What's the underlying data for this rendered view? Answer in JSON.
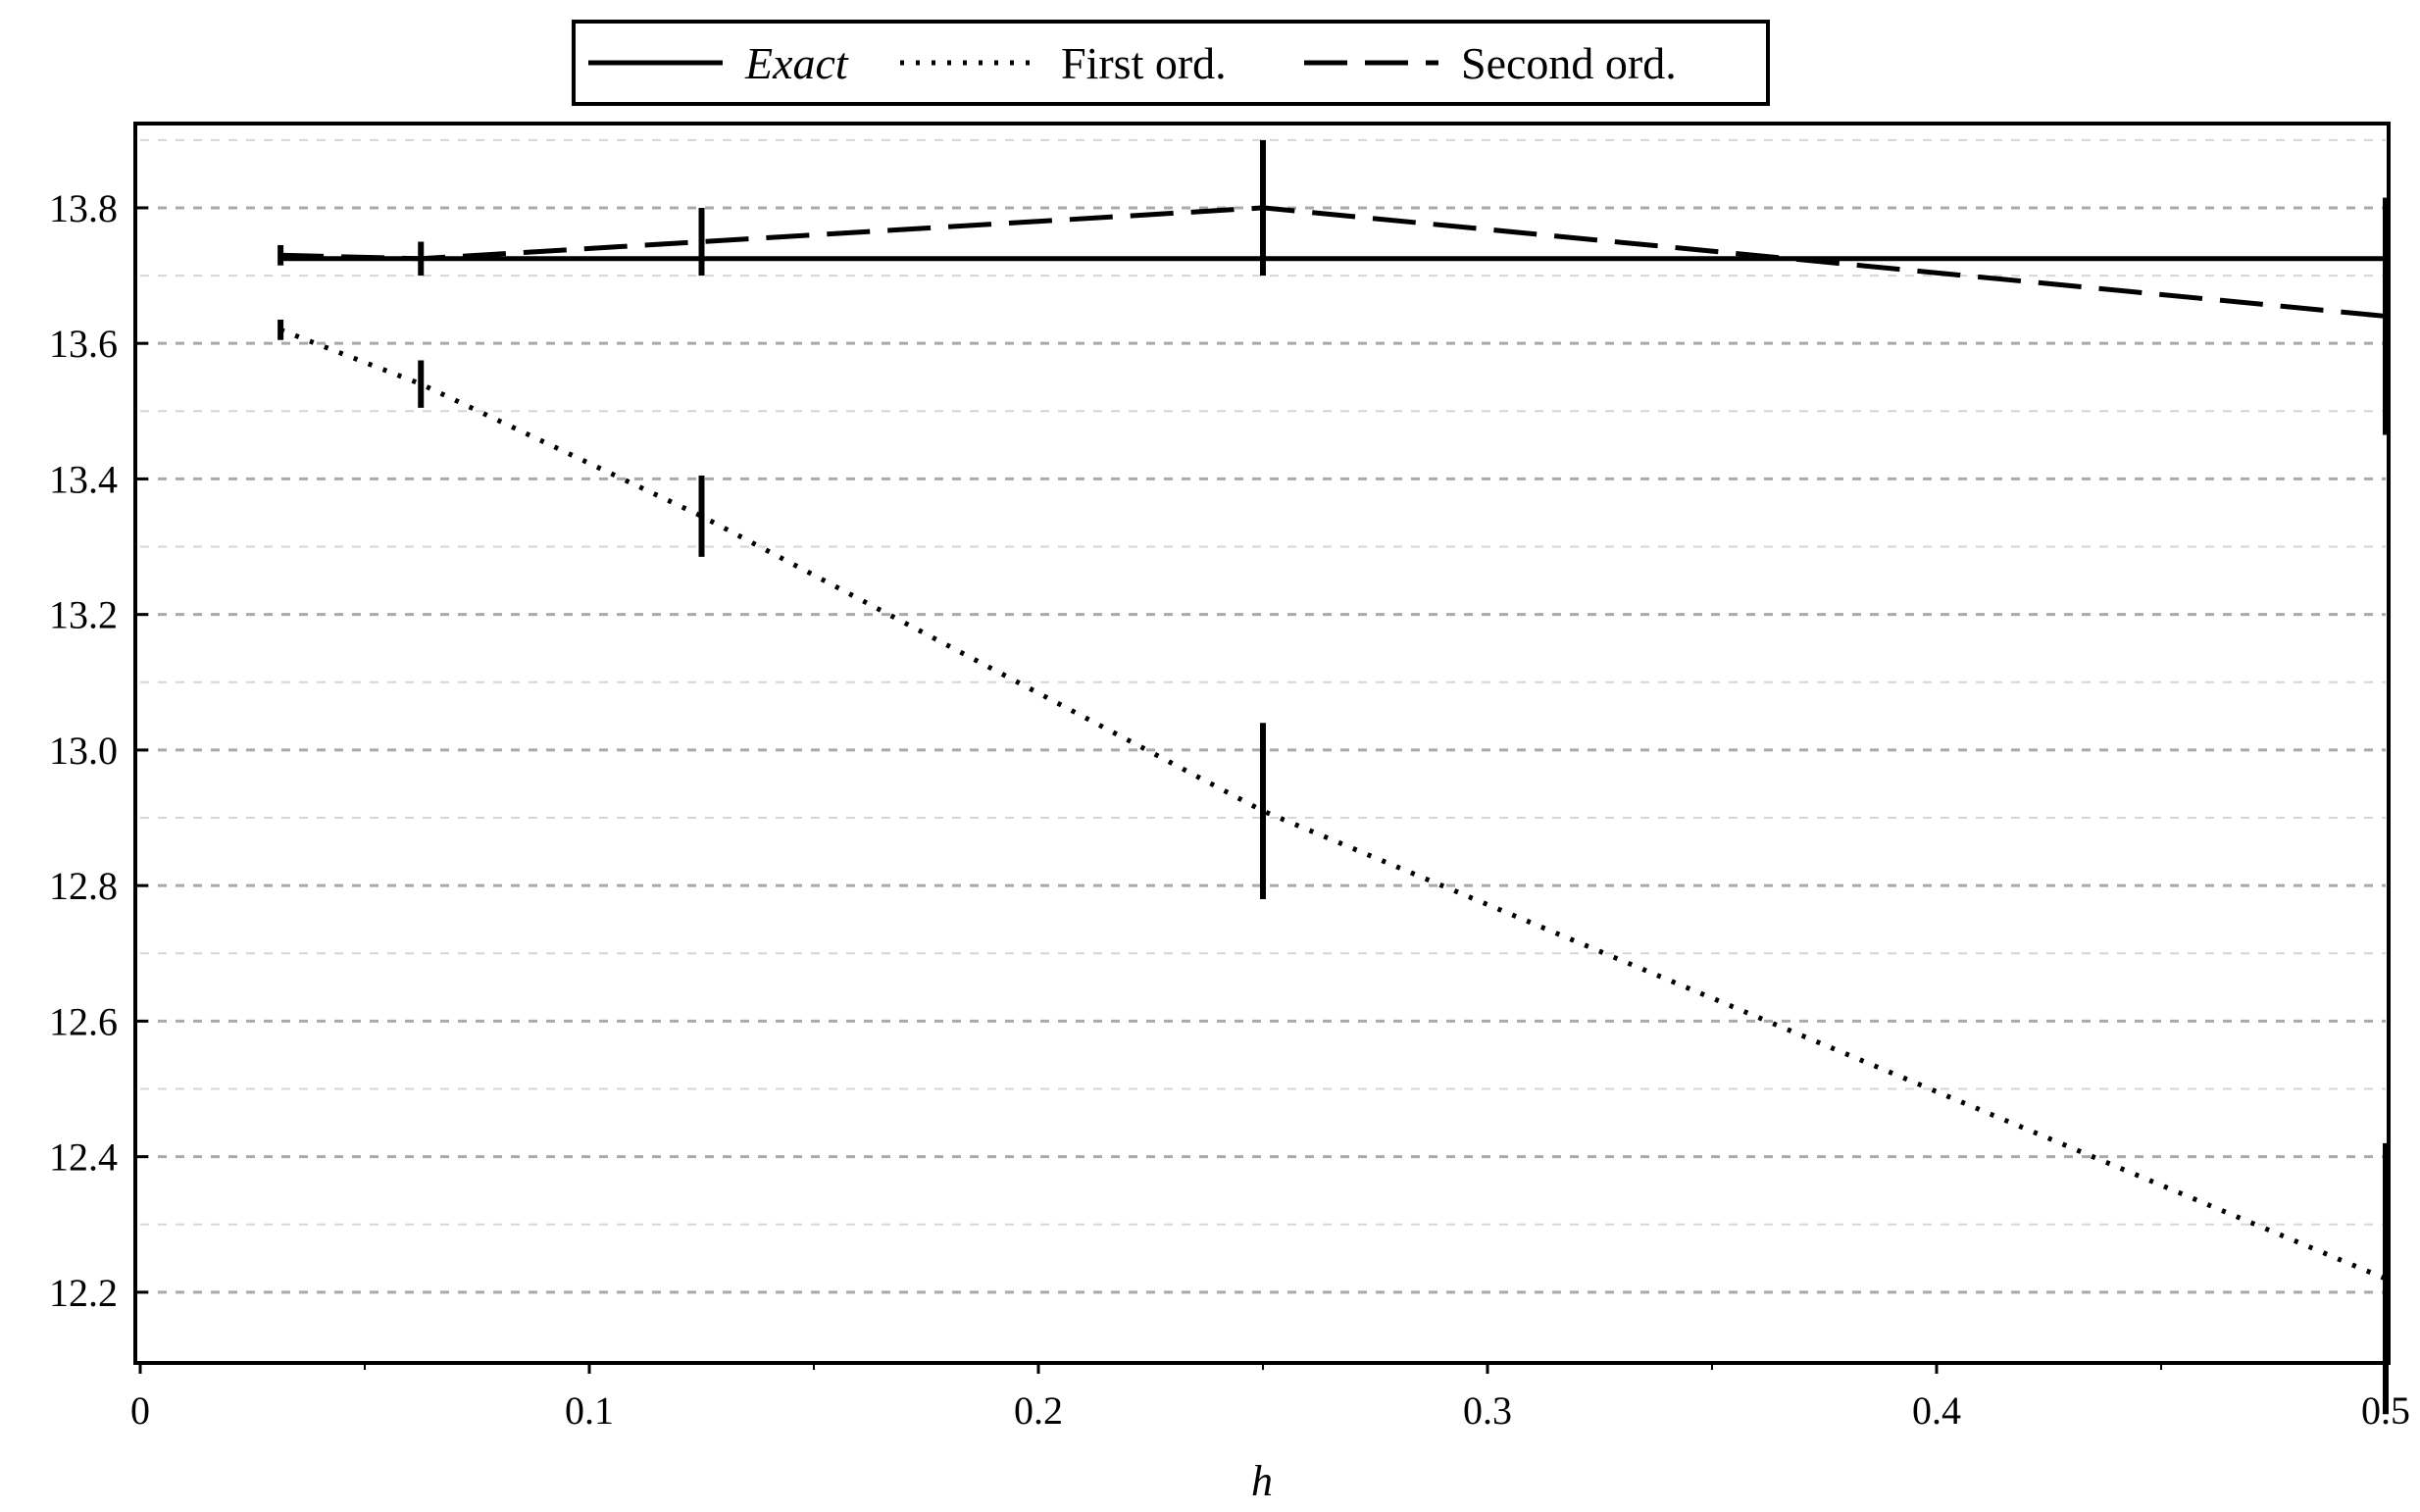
{
  "chart_data": {
    "type": "line",
    "title": "",
    "xlabel": "h",
    "ylabel": "",
    "xlim": [
      0,
      0.5
    ],
    "ylim": [
      12.1,
      13.92
    ],
    "x_ticks": [
      0,
      0.1,
      0.2,
      0.3,
      0.4,
      0.5
    ],
    "x_tick_labels": [
      "0",
      "0.1",
      "0.2",
      "0.3",
      "0.4",
      "0.5"
    ],
    "y_ticks": [
      12.2,
      12.4,
      12.6,
      12.8,
      13.0,
      13.2,
      13.4,
      13.6,
      13.8
    ],
    "y_tick_labels": [
      "12.2",
      "12.4",
      "12.6",
      "12.8",
      "13.0",
      "13.2",
      "13.4",
      "13.6",
      "13.8"
    ],
    "grid": "horizontal dashed, major and minor",
    "legend_position": "top-center, above plot",
    "series": [
      {
        "name": "Exact",
        "style": "solid",
        "color": "#000000",
        "x": [
          0.03125,
          0.5
        ],
        "y": [
          13.725,
          13.725
        ]
      },
      {
        "name": "First ord.",
        "style": "dotted",
        "color": "#000000",
        "x": [
          0.03125,
          0.0625,
          0.125,
          0.25,
          0.5
        ],
        "y": [
          13.62,
          13.54,
          13.345,
          12.91,
          12.22
        ],
        "error": [
          0.015,
          0.035,
          0.06,
          0.13,
          0.2
        ]
      },
      {
        "name": "Second ord.",
        "style": "dashed",
        "color": "#000000",
        "x": [
          0.03125,
          0.0625,
          0.125,
          0.25,
          0.5
        ],
        "y": [
          13.73,
          13.725,
          13.75,
          13.8,
          13.64
        ],
        "error": [
          0.015,
          0.025,
          0.05,
          0.1,
          0.175
        ]
      }
    ]
  }
}
